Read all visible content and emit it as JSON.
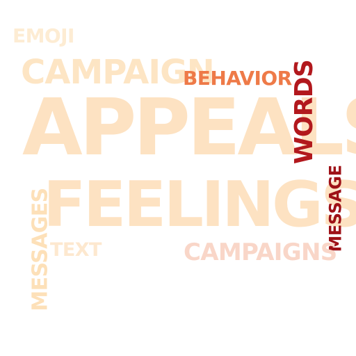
{
  "words": {
    "emoji": "EMOJI",
    "campaign": "CAMPAIGN",
    "behavior": "BEHAVIOR",
    "words": "WORDS",
    "appeals": "APPEALS",
    "feelings": "FEELINGS",
    "message": "MESSAGE",
    "messages": "MESSAGES",
    "text": "TEXT",
    "campaigns": "CAMPAIGNS"
  },
  "colors": {
    "emoji": "#fdecd3",
    "campaign": "#fde5c4",
    "behavior": "#ee7a48",
    "words": "#b2181d",
    "appeals": "#fde2c2",
    "feelings": "#fde2c2",
    "message": "#9e1117",
    "messages": "#fde0b8",
    "text": "#fde8cf",
    "campaigns": "#f9d6c8"
  }
}
